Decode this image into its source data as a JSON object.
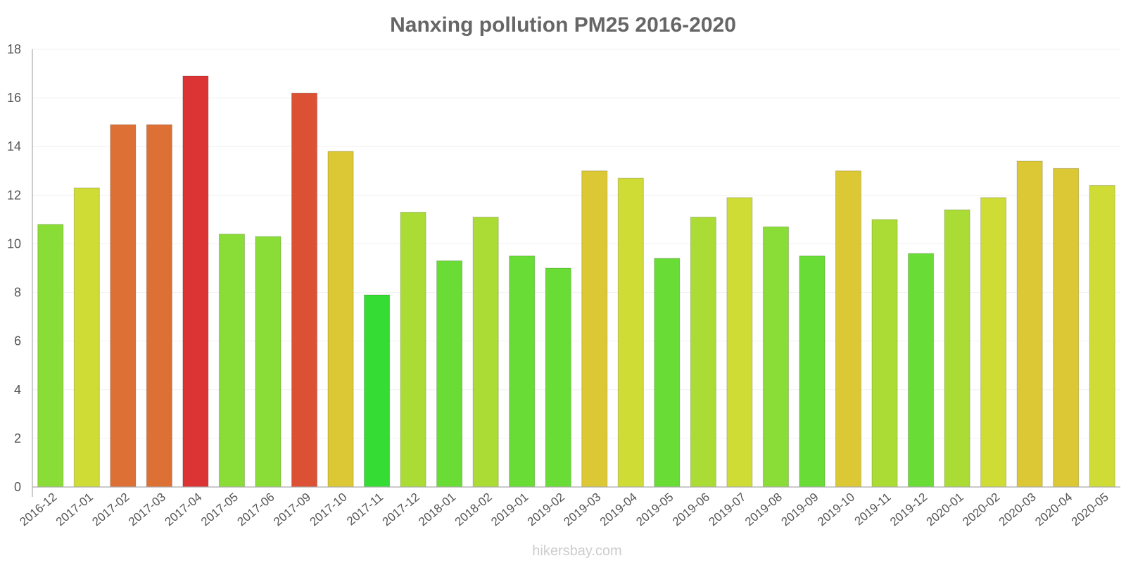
{
  "chart_data": {
    "type": "bar",
    "title": "Nanxing pollution PM25 2016-2020",
    "xlabel": "",
    "ylabel": "",
    "ylim": [
      0,
      18
    ],
    "yticks": [
      0,
      2,
      4,
      6,
      8,
      10,
      12,
      14,
      16,
      18
    ],
    "grid": true,
    "categories": [
      "2016-12",
      "2017-01",
      "2017-02",
      "2017-03",
      "2017-04",
      "2017-05",
      "2017-06",
      "2017-09",
      "2017-10",
      "2017-11",
      "2017-12",
      "2018-01",
      "2018-02",
      "2019-01",
      "2019-02",
      "2019-03",
      "2019-04",
      "2019-05",
      "2019-06",
      "2019-07",
      "2019-08",
      "2019-09",
      "2019-10",
      "2019-11",
      "2019-12",
      "2020-01",
      "2020-02",
      "2020-03",
      "2020-04",
      "2020-05"
    ],
    "values": [
      10.8,
      12.3,
      14.9,
      14.9,
      16.9,
      10.4,
      10.3,
      16.2,
      13.8,
      7.9,
      11.3,
      9.3,
      11.1,
      9.5,
      9.0,
      13.0,
      12.7,
      9.4,
      11.1,
      11.9,
      10.7,
      9.5,
      13.0,
      11.0,
      9.6,
      11.4,
      11.9,
      13.4,
      13.1,
      12.4
    ],
    "colors": [
      "#8adc36",
      "#cfdc36",
      "#dd7034",
      "#dd7034",
      "#dc3434",
      "#8adc36",
      "#8adc36",
      "#dc5034",
      "#dcc834",
      "#34dc34",
      "#abdc36",
      "#6adc36",
      "#abdc36",
      "#6adc36",
      "#6adc36",
      "#dcc834",
      "#cfdc36",
      "#6adc36",
      "#abdc36",
      "#cfdc36",
      "#8adc36",
      "#6adc36",
      "#dcc834",
      "#abdc36",
      "#6adc36",
      "#abdc36",
      "#cfdc36",
      "#dcc834",
      "#dcc834",
      "#cfdc36"
    ]
  },
  "watermark": "hikersbay.com"
}
